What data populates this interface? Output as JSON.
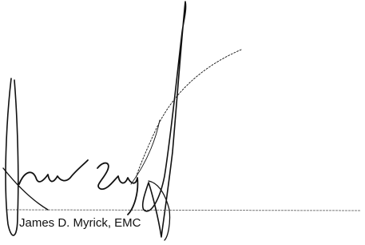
{
  "signature": {
    "name": "James D. Myrick, EMC"
  }
}
